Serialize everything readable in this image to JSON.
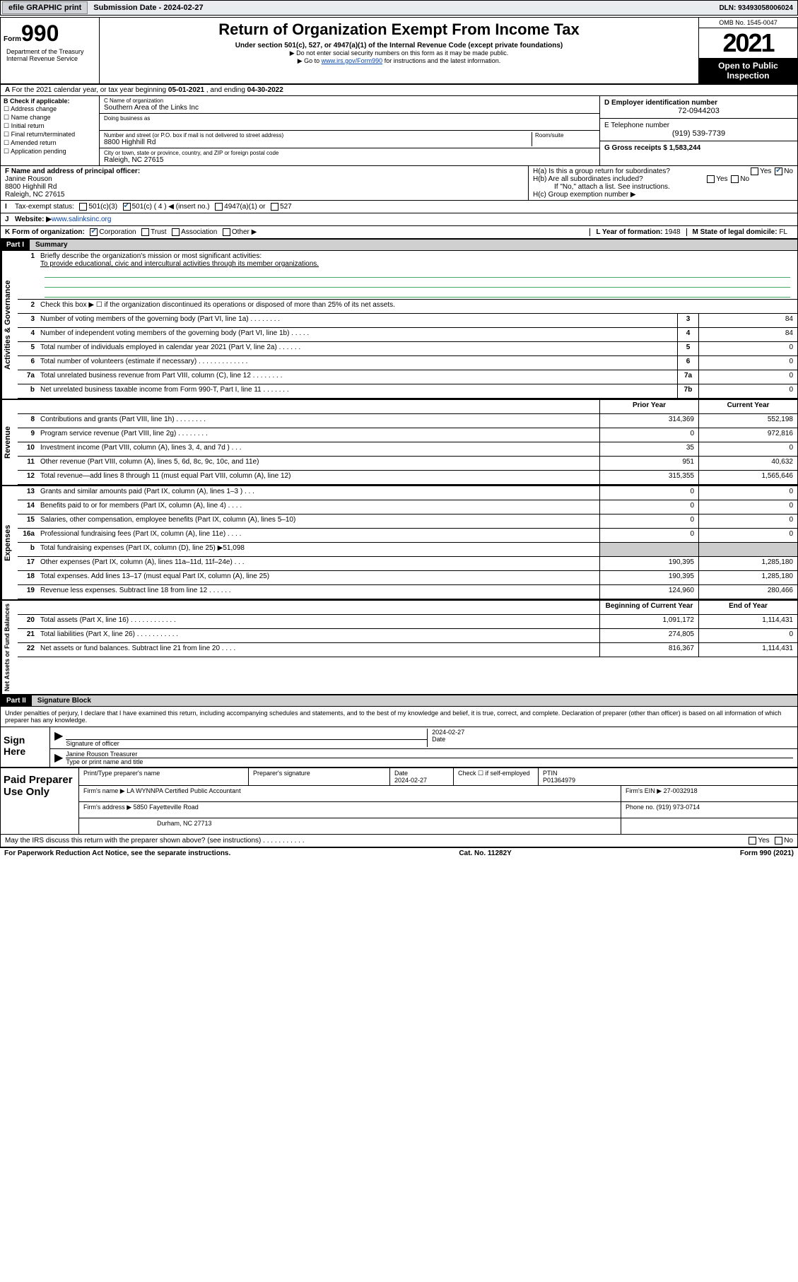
{
  "topbar": {
    "efile": "efile GRAPHIC print",
    "subdate_lbl": "Submission Date - ",
    "subdate": "2024-02-27",
    "dln_lbl": "DLN: ",
    "dln": "93493058006024"
  },
  "header": {
    "form_word": "Form",
    "form_num": "990",
    "title": "Return of Organization Exempt From Income Tax",
    "sub1": "Under section 501(c), 527, or 4947(a)(1) of the Internal Revenue Code (except private foundations)",
    "sub2": "▶ Do not enter social security numbers on this form as it may be made public.",
    "sub3_pre": "▶ Go to ",
    "sub3_link": "www.irs.gov/Form990",
    "sub3_post": " for instructions and the latest information.",
    "dept": "Department of the Treasury\nInternal Revenue Service",
    "omb": "OMB No. 1545-0047",
    "year": "2021",
    "otp": "Open to Public Inspection"
  },
  "rowA": {
    "text_pre": "For the 2021 calendar year, or tax year beginning ",
    "begin": "05-01-2021",
    "mid": " , and ending ",
    "end": "04-30-2022"
  },
  "colB": {
    "hdr": "B Check if applicable:",
    "opts": [
      "Address change",
      "Name change",
      "Initial return",
      "Final return/terminated",
      "Amended return",
      "Application pending"
    ]
  },
  "colC": {
    "name_lbl": "C Name of organization",
    "name": "Southern Area of the Links Inc",
    "dba_lbl": "Doing business as",
    "dba": "",
    "addr_lbl": "Number and street (or P.O. box if mail is not delivered to street address)",
    "room_lbl": "Room/suite",
    "addr": "8800 Highhill Rd",
    "city_lbl": "City or town, state or province, country, and ZIP or foreign postal code",
    "city": "Raleigh, NC  27615"
  },
  "colD": {
    "ein_lbl": "D Employer identification number",
    "ein": "72-0944203",
    "tel_lbl": "E Telephone number",
    "tel": "(919) 539-7739",
    "gross_lbl": "G Gross receipts $ ",
    "gross": "1,583,244"
  },
  "rowF": {
    "lbl": "F  Name and address of principal officer:",
    "name": "Janine Rouson",
    "addr1": "8800 Highhill Rd",
    "addr2": "Raleigh, NC  27615"
  },
  "rowH": {
    "ha": "H(a)  Is this a group return for subordinates?",
    "hb": "H(b)  Are all subordinates included?",
    "hb2": "If \"No,\" attach a list. See instructions.",
    "hc": "H(c)  Group exemption number ▶",
    "yes": "Yes",
    "no": "No"
  },
  "rowI": {
    "lbl": "Tax-exempt status:",
    "o1": "501(c)(3)",
    "o2": "501(c) ( 4 ) ◀ (insert no.)",
    "o3": "4947(a)(1) or",
    "o4": "527"
  },
  "rowJ": {
    "lbl": "Website: ▶ ",
    "val": "www.salinksinc.org"
  },
  "rowK": {
    "lbl": "K Form of organization:",
    "opts": [
      "Corporation",
      "Trust",
      "Association",
      "Other ▶"
    ],
    "checked": 0,
    "L_lbl": "L Year of formation: ",
    "L_val": "1948",
    "M_lbl": "M State of legal domicile: ",
    "M_val": "FL"
  },
  "partI": {
    "num": "Part I",
    "title": "Summary"
  },
  "mission": {
    "q1": "Briefly describe the organization's mission or most significant activities:",
    "text": "To provide educational, civic and intercultural activities through its member organizations.",
    "q2": "Check this box ▶ ☐  if the organization discontinued its operations or disposed of more than 25% of its net assets."
  },
  "gov_rows": [
    {
      "n": "3",
      "d": "Number of voting members of the governing body (Part VI, line 1a)   .   .   .   .   .   .   .   .",
      "b": "3",
      "v": "84"
    },
    {
      "n": "4",
      "d": "Number of independent voting members of the governing body (Part VI, line 1b)   .   .   .   .   .",
      "b": "4",
      "v": "84"
    },
    {
      "n": "5",
      "d": "Total number of individuals employed in calendar year 2021 (Part V, line 2a)   .   .   .   .   .   .",
      "b": "5",
      "v": "0"
    },
    {
      "n": "6",
      "d": "Total number of volunteers (estimate if necessary)   .   .   .   .   .   .   .   .   .   .   .   .   .",
      "b": "6",
      "v": "0"
    },
    {
      "n": "7a",
      "d": "Total unrelated business revenue from Part VIII, column (C), line 12   .   .   .   .   .   .   .   .",
      "b": "7a",
      "v": "0"
    },
    {
      "n": "b",
      "d": "Net unrelated business taxable income from Form 990-T, Part I, line 11   .   .   .   .   .   .   .",
      "b": "7b",
      "v": "0"
    }
  ],
  "two_col_hdr": {
    "prior": "Prior Year",
    "current": "Current Year"
  },
  "rev_rows": [
    {
      "n": "8",
      "d": "Contributions and grants (Part VIII, line 1h)   .   .   .   .   .   .   .   .",
      "p": "314,369",
      "c": "552,198"
    },
    {
      "n": "9",
      "d": "Program service revenue (Part VIII, line 2g)   .   .   .   .   .   .   .   .",
      "p": "0",
      "c": "972,816"
    },
    {
      "n": "10",
      "d": "Investment income (Part VIII, column (A), lines 3, 4, and 7d )   .   .   .",
      "p": "35",
      "c": "0"
    },
    {
      "n": "11",
      "d": "Other revenue (Part VIII, column (A), lines 5, 6d, 8c, 9c, 10c, and 11e)",
      "p": "951",
      "c": "40,632"
    },
    {
      "n": "12",
      "d": "Total revenue—add lines 8 through 11 (must equal Part VIII, column (A), line 12)",
      "p": "315,355",
      "c": "1,565,646"
    }
  ],
  "exp_rows": [
    {
      "n": "13",
      "d": "Grants and similar amounts paid (Part IX, column (A), lines 1–3 )   .   .   .",
      "p": "0",
      "c": "0"
    },
    {
      "n": "14",
      "d": "Benefits paid to or for members (Part IX, column (A), line 4)   .   .   .   .",
      "p": "0",
      "c": "0"
    },
    {
      "n": "15",
      "d": "Salaries, other compensation, employee benefits (Part IX, column (A), lines 5–10)",
      "p": "0",
      "c": "0"
    },
    {
      "n": "16a",
      "d": "Professional fundraising fees (Part IX, column (A), line 11e)   .   .   .   .",
      "p": "0",
      "c": "0"
    },
    {
      "n": "b",
      "d": "Total fundraising expenses (Part IX, column (D), line 25) ▶51,098",
      "p": "",
      "c": "",
      "gray": true
    },
    {
      "n": "17",
      "d": "Other expenses (Part IX, column (A), lines 11a–11d, 11f–24e)   .   .   .",
      "p": "190,395",
      "c": "1,285,180"
    },
    {
      "n": "18",
      "d": "Total expenses. Add lines 13–17 (must equal Part IX, column (A), line 25)",
      "p": "190,395",
      "c": "1,285,180"
    },
    {
      "n": "19",
      "d": "Revenue less expenses. Subtract line 18 from line 12   .   .   .   .   .   .",
      "p": "124,960",
      "c": "280,466"
    }
  ],
  "na_hdr": {
    "begin": "Beginning of Current Year",
    "end": "End of Year"
  },
  "na_rows": [
    {
      "n": "20",
      "d": "Total assets (Part X, line 16)   .   .   .   .   .   .   .   .   .   .   .   .",
      "p": "1,091,172",
      "c": "1,114,431"
    },
    {
      "n": "21",
      "d": "Total liabilities (Part X, line 26)   .   .   .   .   .   .   .   .   .   .   .",
      "p": "274,805",
      "c": "0"
    },
    {
      "n": "22",
      "d": "Net assets or fund balances. Subtract line 21 from line 20   .   .   .   .",
      "p": "816,367",
      "c": "1,114,431"
    }
  ],
  "partII": {
    "num": "Part II",
    "title": "Signature Block"
  },
  "sig": {
    "decl": "Under penalties of perjury, I declare that I have examined this return, including accompanying schedules and statements, and to the best of my knowledge and belief, it is true, correct, and complete. Declaration of preparer (other than officer) is based on all information of which preparer has any knowledge.",
    "sign_here": "Sign Here",
    "sig_officer": "Signature of officer",
    "date": "2024-02-27",
    "date_lbl": "Date",
    "name": "Janine Rouson  Treasurer",
    "name_lbl": "Type or print name and title"
  },
  "prep": {
    "title": "Paid Preparer Use Only",
    "r1": {
      "c1": "Print/Type preparer's name",
      "c2": "Preparer's signature",
      "c3_lbl": "Date",
      "c3": "2024-02-27",
      "c4": "Check ☐ if self-employed",
      "c5_lbl": "PTIN",
      "c5": "P01364979"
    },
    "r2": {
      "lbl": "Firm's name      ▶ ",
      "val": "LA WYNNPA Certified Public Accountant",
      "ein_lbl": "Firm's EIN ▶ ",
      "ein": "27-0032918"
    },
    "r3": {
      "lbl": "Firm's address ▶ ",
      "val": "5850 Fayetteville Road",
      "ph_lbl": "Phone no. ",
      "ph": "(919) 973-0714"
    },
    "r4": {
      "city": "Durham, NC  27713"
    }
  },
  "may_irs": "May the IRS discuss this return with the preparer shown above? (see instructions)   .   .   .   .   .   .   .   .   .   .   .",
  "footer": {
    "left": "For Paperwork Reduction Act Notice, see the separate instructions.",
    "mid": "Cat. No. 11282Y",
    "right": "Form 990 (2021)"
  },
  "vlabels": {
    "gov": "Activities & Governance",
    "rev": "Revenue",
    "exp": "Expenses",
    "na": "Net Assets or Fund Balances"
  }
}
